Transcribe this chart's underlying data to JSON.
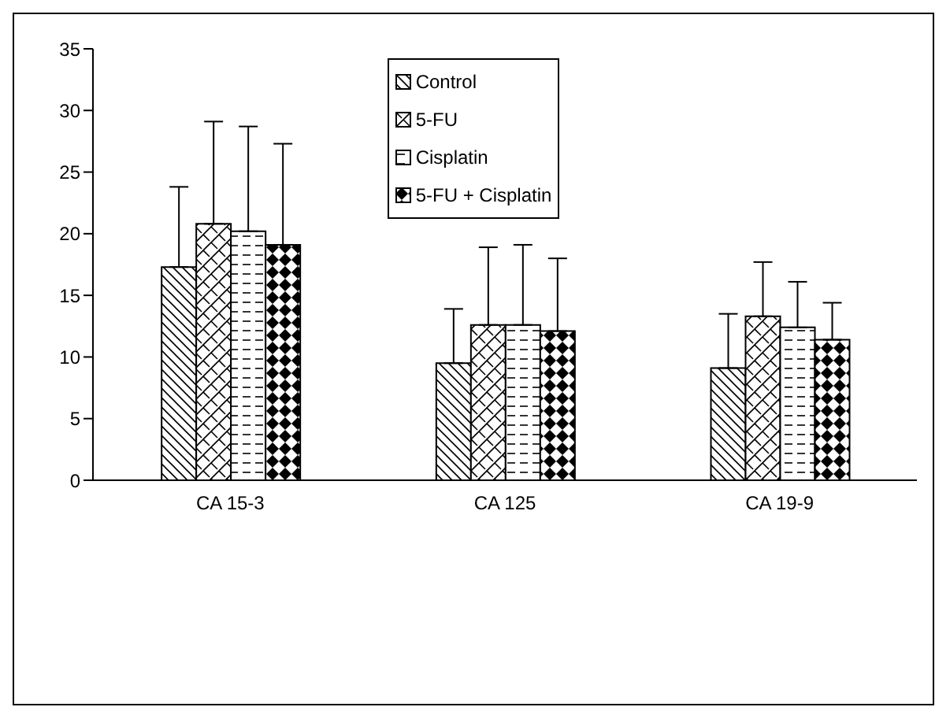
{
  "chart_data": {
    "type": "bar",
    "categories": [
      "CA 15-3",
      "CA 125",
      "CA 19-9"
    ],
    "series": [
      {
        "name": "Control",
        "color": "#000000",
        "values": [
          17.3,
          9.5,
          9.1
        ],
        "errors": [
          [
            17.3,
            23.8
          ],
          [
            9.5,
            13.9
          ],
          [
            9.1,
            13.5
          ]
        ]
      },
      {
        "name": "5-FU",
        "color": "#000000",
        "values": [
          20.8,
          12.6,
          13.3
        ],
        "errors": [
          [
            20.8,
            29.1
          ],
          [
            12.6,
            18.9
          ],
          [
            13.3,
            17.7
          ]
        ]
      },
      {
        "name": "Cisplatin",
        "color": "#000000",
        "values": [
          20.2,
          12.6,
          12.4
        ],
        "errors": [
          [
            20.2,
            28.7
          ],
          [
            12.6,
            19.1
          ],
          [
            12.4,
            16.1
          ]
        ]
      },
      {
        "name": "5-FU + Cisplatin",
        "color": "#000000",
        "values": [
          19.1,
          12.1,
          11.4
        ],
        "errors": [
          [
            19.1,
            27.3
          ],
          [
            12.1,
            18.0
          ],
          [
            11.4,
            14.4
          ]
        ]
      }
    ],
    "ylim": [
      0,
      35
    ],
    "yticks": [
      0,
      5,
      10,
      15,
      20,
      25,
      30,
      35
    ],
    "grid": false,
    "legend": "top"
  }
}
